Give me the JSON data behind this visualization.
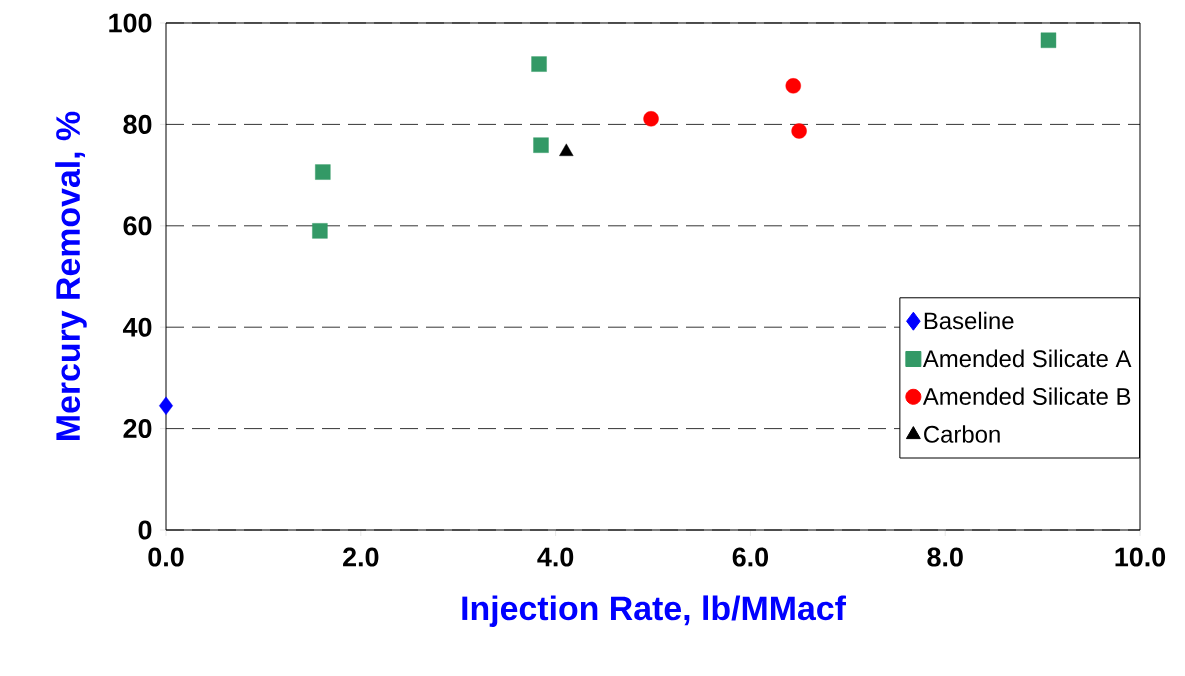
{
  "chart_data": {
    "type": "scatter",
    "xlabel": "Injection Rate, lb/MMacf",
    "ylabel": "Mercury Removal, %",
    "xlim": [
      0,
      10
    ],
    "ylim": [
      0,
      100
    ],
    "xticks": [
      {
        "value": 0,
        "label": "0.0"
      },
      {
        "value": 2,
        "label": "2.0"
      },
      {
        "value": 4,
        "label": "4.0"
      },
      {
        "value": 6,
        "label": "6.0"
      },
      {
        "value": 8,
        "label": "8.0"
      },
      {
        "value": 10,
        "label": "10.0"
      }
    ],
    "yticks": [
      0,
      20,
      40,
      60,
      80,
      100
    ],
    "grid": "y",
    "legend": "right",
    "series": [
      {
        "name": "Baseline",
        "color": "#0000ff",
        "marker": "diamond",
        "x": [
          0
        ],
        "values": [
          24.5
        ]
      },
      {
        "name": "Amended Silicate A",
        "color": "#339966",
        "marker": "square",
        "x": [
          1.58,
          1.61,
          3.83,
          3.85,
          9.06
        ],
        "values": [
          59.0,
          70.6,
          91.9,
          75.9,
          96.6
        ]
      },
      {
        "name": "Amended Silicate B",
        "color": "#ff0000",
        "marker": "circle",
        "x": [
          4.98,
          6.44,
          6.5
        ],
        "values": [
          81.1,
          87.6,
          78.7
        ]
      },
      {
        "name": "Carbon",
        "color": "#000000",
        "marker": "triangle",
        "x": [
          4.11
        ],
        "values": [
          74.6
        ]
      }
    ]
  }
}
